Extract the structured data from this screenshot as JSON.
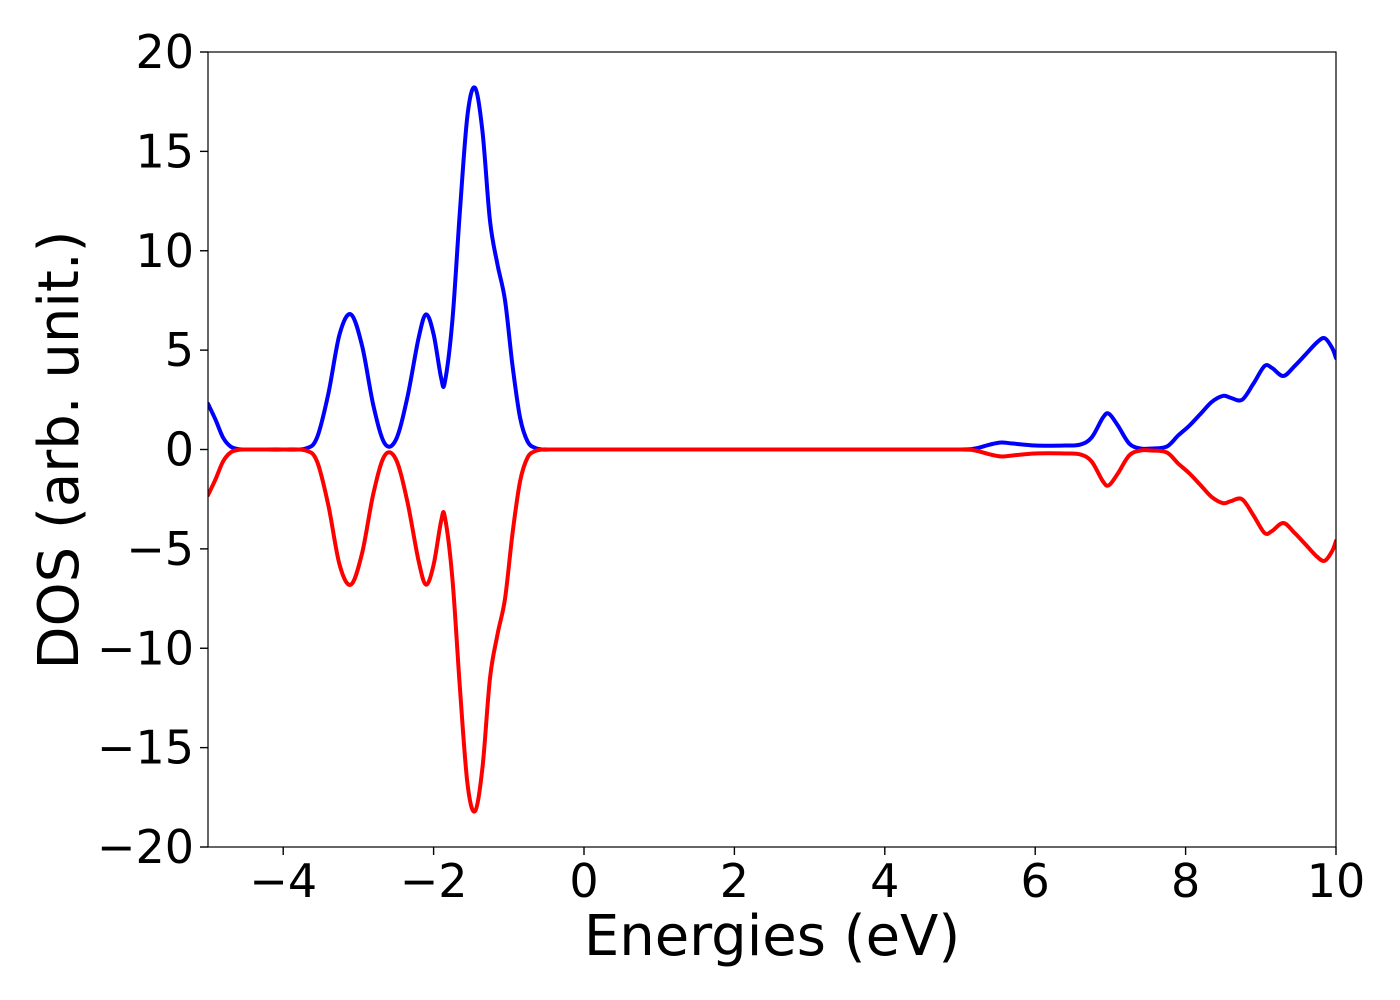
{
  "chart_data": {
    "type": "line",
    "title": "",
    "xlabel": "Energies (eV)",
    "ylabel": "DOS (arb. unit.)",
    "xlim": [
      -5,
      10
    ],
    "ylim": [
      -20,
      20
    ],
    "xticks": [
      -4,
      -2,
      0,
      2,
      4,
      6,
      8,
      10
    ],
    "yticks": [
      -20,
      -15,
      -10,
      -5,
      0,
      5,
      10,
      15,
      20
    ],
    "xtick_labels": [
      "−4",
      "−2",
      "0",
      "2",
      "4",
      "6",
      "8",
      "10"
    ],
    "ytick_labels": [
      "−20",
      "−15",
      "−10",
      "−5",
      "0",
      "5",
      "10",
      "15",
      "20"
    ],
    "grid": false,
    "legend": "none",
    "series": [
      {
        "color": "#0000ff",
        "x": [
          -5.0,
          -4.9,
          -4.8,
          -4.7,
          -4.6,
          -4.5,
          -4.3,
          -4.0,
          -3.7,
          -3.55,
          -3.4,
          -3.25,
          -3.1,
          -2.95,
          -2.8,
          -2.65,
          -2.5,
          -2.35,
          -2.2,
          -2.1,
          -2.0,
          -1.9,
          -1.85,
          -1.75,
          -1.65,
          -1.55,
          -1.45,
          -1.35,
          -1.25,
          -1.15,
          -1.05,
          -0.95,
          -0.85,
          -0.75,
          -0.65,
          -0.55,
          -0.45,
          0.0,
          1.0,
          2.0,
          3.0,
          4.0,
          5.0,
          5.2,
          5.4,
          5.55,
          5.7,
          6.0,
          6.4,
          6.6,
          6.75,
          6.9,
          6.98,
          7.1,
          7.25,
          7.4,
          7.55,
          7.75,
          7.9,
          8.05,
          8.2,
          8.35,
          8.5,
          8.6,
          8.75,
          8.9,
          9.05,
          9.15,
          9.3,
          9.45,
          9.6,
          9.75,
          9.85,
          9.95,
          10.0
        ],
        "y": [
          2.3,
          1.5,
          0.6,
          0.15,
          0.02,
          0.0,
          0.0,
          0.0,
          0.05,
          0.6,
          2.8,
          5.8,
          6.8,
          5.2,
          2.2,
          0.3,
          0.5,
          2.6,
          5.6,
          6.8,
          5.8,
          3.6,
          3.4,
          6.5,
          12.0,
          16.8,
          18.2,
          16.0,
          11.5,
          9.3,
          7.5,
          4.2,
          1.6,
          0.4,
          0.08,
          0.0,
          0.0,
          0.0,
          0.0,
          0.0,
          0.0,
          0.0,
          0.0,
          0.05,
          0.25,
          0.35,
          0.3,
          0.2,
          0.2,
          0.25,
          0.6,
          1.6,
          1.8,
          1.2,
          0.3,
          0.05,
          0.05,
          0.15,
          0.7,
          1.2,
          1.8,
          2.4,
          2.7,
          2.6,
          2.5,
          3.3,
          4.2,
          4.1,
          3.7,
          4.2,
          4.8,
          5.4,
          5.6,
          5.1,
          4.6
        ]
      },
      {
        "color": "#ff0000",
        "x": [
          -5.0,
          -4.9,
          -4.8,
          -4.7,
          -4.6,
          -4.5,
          -4.3,
          -4.0,
          -3.7,
          -3.55,
          -3.4,
          -3.25,
          -3.1,
          -2.95,
          -2.8,
          -2.65,
          -2.5,
          -2.35,
          -2.2,
          -2.1,
          -2.0,
          -1.9,
          -1.85,
          -1.75,
          -1.65,
          -1.55,
          -1.45,
          -1.35,
          -1.25,
          -1.15,
          -1.05,
          -0.95,
          -0.85,
          -0.75,
          -0.65,
          -0.55,
          -0.45,
          0.0,
          1.0,
          2.0,
          3.0,
          4.0,
          5.0,
          5.2,
          5.4,
          5.55,
          5.7,
          6.0,
          6.4,
          6.6,
          6.75,
          6.9,
          6.98,
          7.1,
          7.25,
          7.4,
          7.55,
          7.75,
          7.9,
          8.05,
          8.2,
          8.35,
          8.5,
          8.6,
          8.75,
          8.9,
          9.05,
          9.15,
          9.3,
          9.45,
          9.6,
          9.75,
          9.85,
          9.95,
          10.0
        ],
        "y": [
          -2.3,
          -1.5,
          -0.6,
          -0.15,
          -0.02,
          0.0,
          0.0,
          0.0,
          -0.05,
          -0.6,
          -2.8,
          -5.8,
          -6.8,
          -5.2,
          -2.2,
          -0.3,
          -0.5,
          -2.6,
          -5.6,
          -6.8,
          -5.8,
          -3.6,
          -3.4,
          -6.5,
          -12.0,
          -16.8,
          -18.2,
          -16.0,
          -11.5,
          -9.3,
          -7.5,
          -4.2,
          -1.6,
          -0.4,
          -0.08,
          0.0,
          0.0,
          0.0,
          0.0,
          0.0,
          0.0,
          0.0,
          0.0,
          -0.05,
          -0.25,
          -0.35,
          -0.3,
          -0.2,
          -0.2,
          -0.25,
          -0.6,
          -1.6,
          -1.8,
          -1.2,
          -0.3,
          -0.05,
          -0.05,
          -0.15,
          -0.7,
          -1.2,
          -1.8,
          -2.4,
          -2.7,
          -2.6,
          -2.5,
          -3.3,
          -4.2,
          -4.1,
          -3.7,
          -4.2,
          -4.8,
          -5.4,
          -5.6,
          -5.1,
          -4.6
        ]
      }
    ]
  }
}
